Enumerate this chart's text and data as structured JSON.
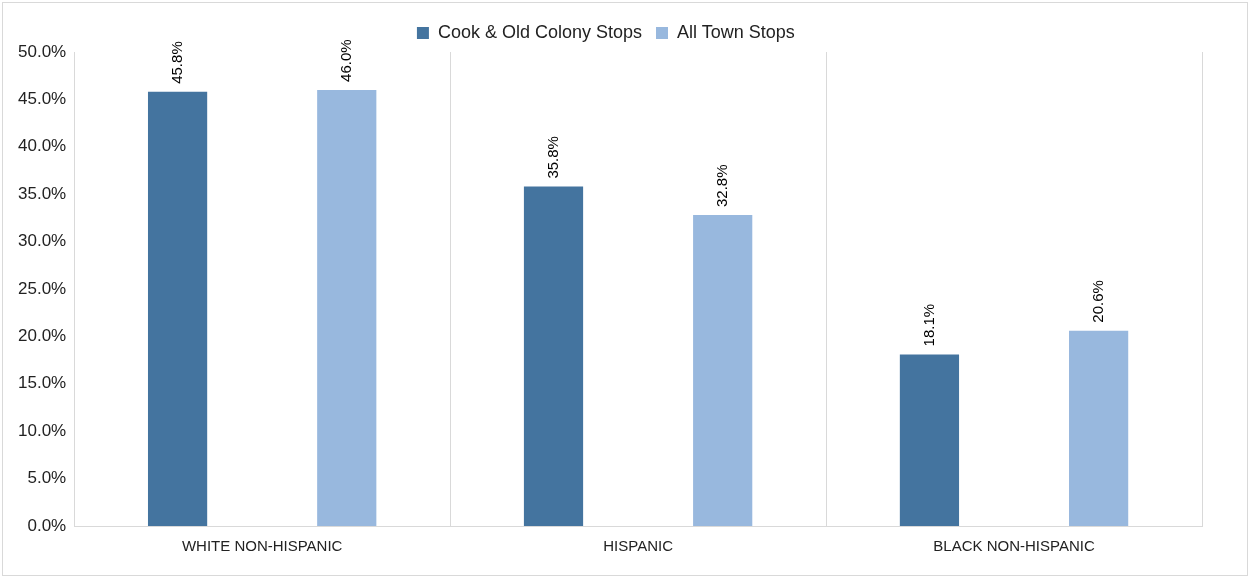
{
  "chart_data": {
    "type": "bar",
    "categories": [
      "WHITE NON-HISPANIC",
      "HISPANIC",
      "BLACK NON-HISPANIC"
    ],
    "series": [
      {
        "name": "Cook & Old Colony Stops",
        "color": "#44749f",
        "values": [
          45.8,
          35.8,
          18.1
        ]
      },
      {
        "name": "All Town Stops",
        "color": "#98b8de",
        "values": [
          46.0,
          32.8,
          20.6
        ]
      }
    ],
    "ylim": [
      0,
      50
    ],
    "yticks": [
      {
        "value": 0,
        "label": "0.0%"
      },
      {
        "value": 5,
        "label": "5.0%"
      },
      {
        "value": 10,
        "label": "10.0%"
      },
      {
        "value": 15,
        "label": "15.0%"
      },
      {
        "value": 20,
        "label": "20.0%"
      },
      {
        "value": 25,
        "label": "25.0%"
      },
      {
        "value": 30,
        "label": "30.0%"
      },
      {
        "value": 35,
        "label": "35.0%"
      },
      {
        "value": 40,
        "label": "40.0%"
      },
      {
        "value": 45,
        "label": "45.0%"
      },
      {
        "value": 50,
        "label": "50.0%"
      }
    ],
    "value_labels": [
      [
        "45.8%",
        "35.8%",
        "18.1%"
      ],
      [
        "46.0%",
        "32.8%",
        "20.6%"
      ]
    ],
    "grid": "x",
    "legend": "top"
  }
}
